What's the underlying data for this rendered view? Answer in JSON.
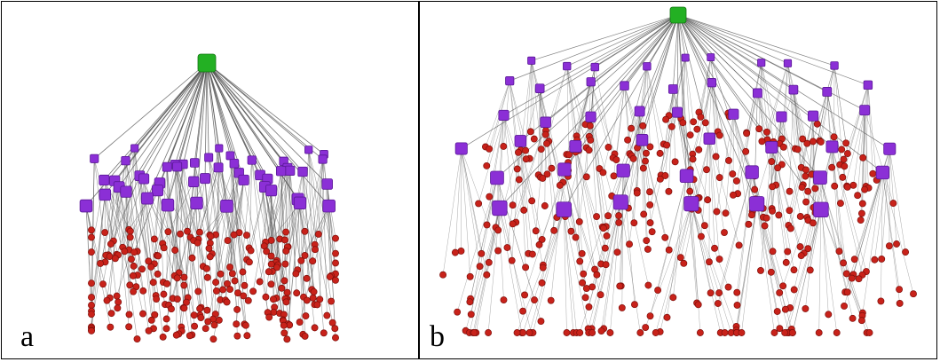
{
  "panels": [
    {
      "id": "a",
      "label": "a"
    },
    {
      "id": "b",
      "label": "b"
    }
  ],
  "colors": {
    "root": "#23b023",
    "root_edge": "#137513",
    "mid": "#8b2fd6",
    "mid_edge": "#5a1896",
    "leaf": "#c8221a",
    "leaf_edge": "#7d0f0b",
    "edge": "#555555",
    "border": "#000000"
  },
  "legend_shapes": {
    "root": "green-cube",
    "mid": "purple-cube",
    "leaf": "red-sphere"
  }
}
